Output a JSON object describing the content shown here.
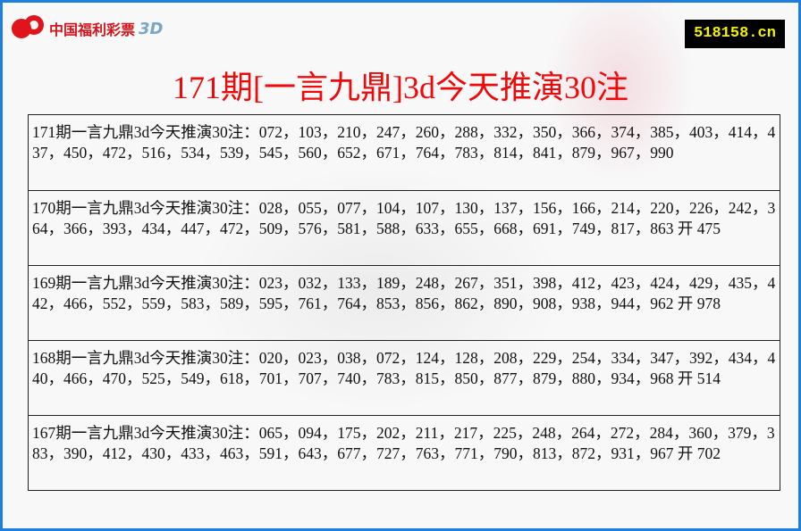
{
  "logo": {
    "text": "中国福利彩票",
    "suffix": "3D"
  },
  "site_badge": "518158.cn",
  "title": "171期[一言九鼎]3d今天推演30注",
  "rows": [
    {
      "text": "171期一言九鼎3d今天推演30注：072，103，210，247，260，288，332，350，366，374，385，403，414，437，450，472，516，534，539，545，560，652，671，764，783，814，841，879，967，990"
    },
    {
      "text": "170期一言九鼎3d今天推演30注：028，055，077，104，107，130，137，156，166，214，220，226，242，364，366，393，434，447，472，509，576，581，588，633，655，668，691，749，817，863 开 475"
    },
    {
      "text": "169期一言九鼎3d今天推演30注：023，032，133，189，248，267，351，398，412，423，424，429，435，442，466，552，559，583，589，595，761，764，853，856，862，890，908，938，944，962 开 978"
    },
    {
      "text": "168期一言九鼎3d今天推演30注：020，023，038，072，124，128，208，229，254，334，347，392，434，440，466，470，525，549，618，701，707，740，783，815，850，877，879，880，934，968 开 514"
    },
    {
      "text": "167期一言九鼎3d今天推演30注：065，094，175，202，211，217，225，248，264，272，284，360，379，383，390，412，430，433，463，591，643，677，727，763，771，790，813，872，931，967 开 702"
    }
  ],
  "colors": {
    "border": "#1f7fe0",
    "title": "#ee0a0a",
    "badge_bg": "#000000",
    "badge_text": "#f4f000",
    "logo": "#e0141b"
  }
}
